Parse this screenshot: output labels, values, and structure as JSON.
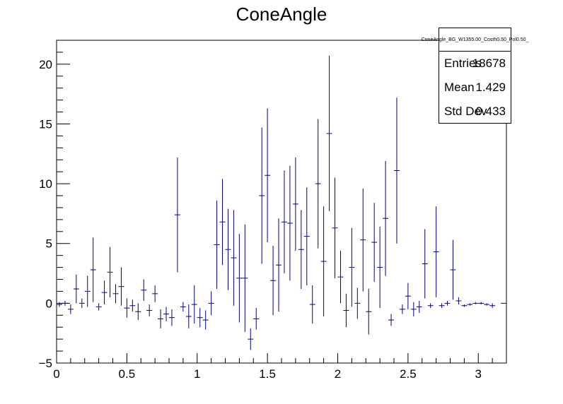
{
  "chart_data": {
    "type": "errorbar",
    "title": "ConeAngle",
    "xlabel": "",
    "ylabel": "",
    "xlim": [
      0,
      3.2
    ],
    "ylim": [
      -5,
      22
    ],
    "x_ticks": [
      "0",
      "0.5",
      "1",
      "1.5",
      "2",
      "2.5",
      "3"
    ],
    "y_ticks": [
      "−5",
      "0",
      "5",
      "10",
      "15",
      "20"
    ],
    "line_color": "#000080",
    "bin_width": 0.04,
    "points": [
      [
        0.02,
        -0.1,
        0.2
      ],
      [
        0.06,
        0.0,
        0.2
      ],
      [
        0.1,
        -0.5,
        0.4
      ],
      [
        0.14,
        1.2,
        1.2
      ],
      [
        0.18,
        0.0,
        0.4
      ],
      [
        0.22,
        1.0,
        1.3
      ],
      [
        0.26,
        2.8,
        2.7
      ],
      [
        0.3,
        -0.3,
        0.3
      ],
      [
        0.34,
        0.9,
        1.0
      ],
      [
        0.38,
        2.6,
        2.1
      ],
      [
        0.42,
        0.8,
        0.8
      ],
      [
        0.46,
        1.4,
        1.6
      ],
      [
        0.5,
        -0.4,
        0.8
      ],
      [
        0.54,
        -0.2,
        0.5
      ],
      [
        0.58,
        -0.7,
        0.7
      ],
      [
        0.62,
        1.1,
        0.9
      ],
      [
        0.66,
        -0.6,
        0.5
      ],
      [
        0.7,
        0.8,
        0.7
      ],
      [
        0.74,
        -1.3,
        0.8
      ],
      [
        0.78,
        -0.9,
        0.6
      ],
      [
        0.82,
        -1.2,
        0.7
      ],
      [
        0.86,
        7.4,
        4.8
      ],
      [
        0.9,
        -0.3,
        0.4
      ],
      [
        0.94,
        -1.1,
        1.0
      ],
      [
        0.98,
        -0.1,
        1.6
      ],
      [
        1.02,
        -1.2,
        0.8
      ],
      [
        1.06,
        -1.4,
        0.8
      ],
      [
        1.1,
        0.0,
        1.0
      ],
      [
        1.14,
        4.9,
        3.7
      ],
      [
        1.18,
        6.8,
        3.6
      ],
      [
        1.22,
        4.5,
        3.4
      ],
      [
        1.26,
        3.8,
        4.0
      ],
      [
        1.3,
        2.1,
        3.7
      ],
      [
        1.34,
        2.1,
        4.5
      ],
      [
        1.38,
        -3.0,
        0.9
      ],
      [
        1.42,
        -1.3,
        0.9
      ],
      [
        1.46,
        9.0,
        5.7
      ],
      [
        1.5,
        10.7,
        5.6
      ],
      [
        1.54,
        1.9,
        2.9
      ],
      [
        1.58,
        3.2,
        3.9
      ],
      [
        1.62,
        6.8,
        4.3
      ],
      [
        1.66,
        6.7,
        4.8
      ],
      [
        1.7,
        8.3,
        3.9
      ],
      [
        1.74,
        4.5,
        3.3
      ],
      [
        1.78,
        5.6,
        4.1
      ],
      [
        1.82,
        -0.1,
        1.6
      ],
      [
        1.86,
        10.0,
        5.4
      ],
      [
        1.9,
        3.5,
        4.6
      ],
      [
        1.94,
        14.2,
        6.5
      ],
      [
        1.98,
        6.3,
        4.2
      ],
      [
        2.02,
        2.2,
        2.2
      ],
      [
        2.06,
        -0.6,
        1.4
      ],
      [
        2.1,
        3.0,
        3.3
      ],
      [
        2.14,
        0.0,
        1.3
      ],
      [
        2.18,
        5.3,
        4.3
      ],
      [
        2.22,
        -0.7,
        1.9
      ],
      [
        2.26,
        5.1,
        3.3
      ],
      [
        2.3,
        3.0,
        3.4
      ],
      [
        2.34,
        7.1,
        4.8
      ],
      [
        2.38,
        -1.4,
        0.5
      ],
      [
        2.42,
        11.1,
        6.1
      ],
      [
        2.46,
        -0.5,
        0.4
      ],
      [
        2.5,
        0.6,
        1.1
      ],
      [
        2.54,
        -0.5,
        0.6
      ],
      [
        2.58,
        -0.3,
        0.5
      ],
      [
        2.62,
        3.3,
        2.9
      ],
      [
        2.66,
        -0.2,
        0.2
      ],
      [
        2.7,
        4.3,
        3.8
      ],
      [
        2.74,
        -0.2,
        0.2
      ],
      [
        2.78,
        0.0,
        0.2
      ],
      [
        2.82,
        2.8,
        2.5
      ],
      [
        2.86,
        0.2,
        0.3
      ],
      [
        2.9,
        -0.2,
        0.1
      ],
      [
        2.94,
        -0.1,
        0.1
      ],
      [
        2.98,
        0.0,
        0.1
      ],
      [
        3.02,
        0.0,
        0.1
      ],
      [
        3.06,
        -0.1,
        0.1
      ],
      [
        3.1,
        -0.2,
        0.2
      ],
      [
        3.18,
        0.0,
        0.0
      ]
    ],
    "stats": {
      "name": "ConeAngle_BG_W1355.00_Costh0.50_Pol0.50_",
      "rows": [
        {
          "label": "Entries",
          "value": "18678"
        },
        {
          "label": "Mean",
          "value": "1.429"
        },
        {
          "label": "Std Dev",
          "value": "0.433"
        }
      ]
    }
  }
}
